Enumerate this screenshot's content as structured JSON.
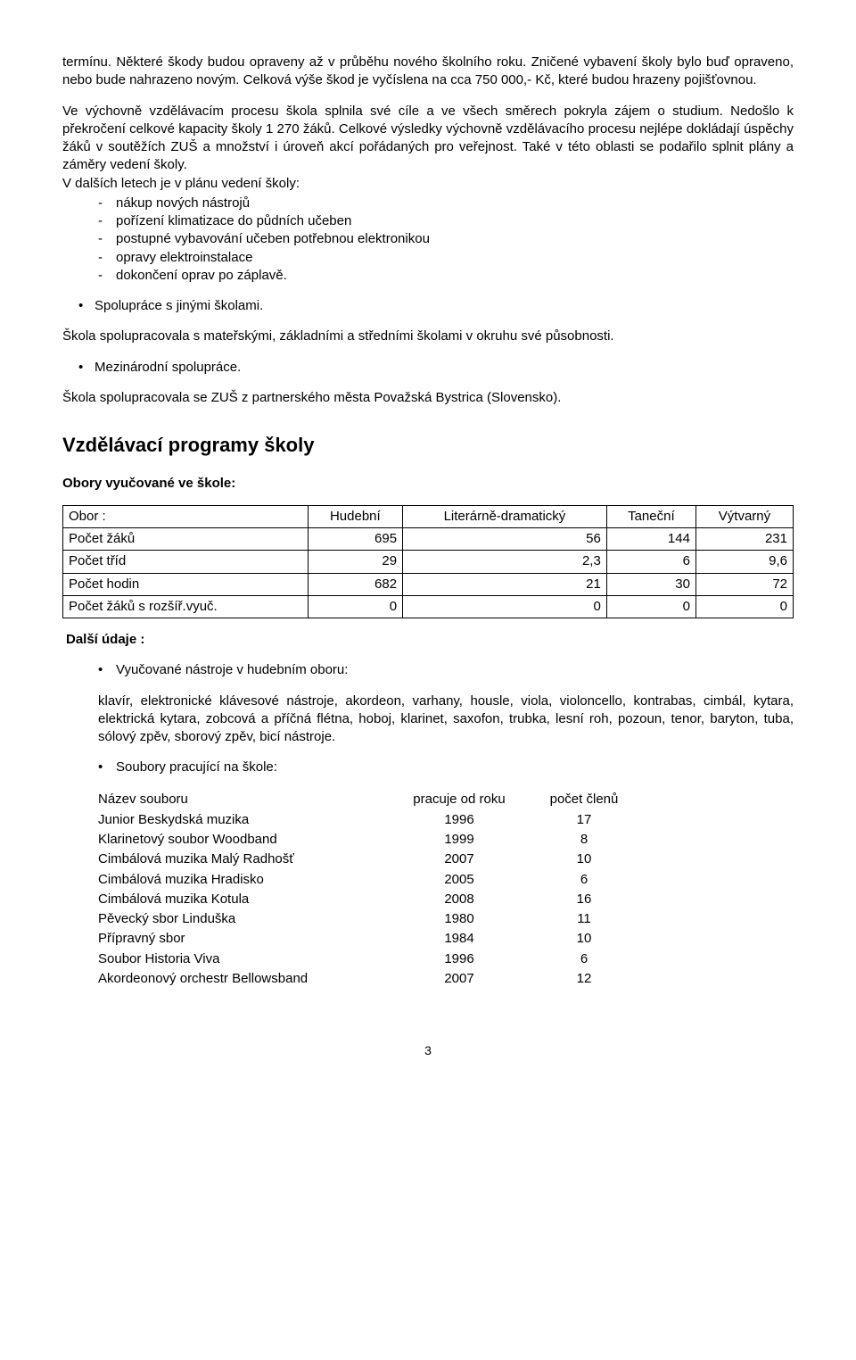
{
  "para1": "termínu. Některé škody budou opraveny až v průběhu nového školního roku. Zničené vybavení školy bylo buď opraveno, nebo bude nahrazeno novým. Celková výše škod je vyčíslena na cca 750 000,- Kč, které budou hrazeny pojišťovnou.",
  "para2_lead": "Ve výchovně vzdělávacím procesu škola splnila své cíle a ve všech směrech pokryla zájem o studium. Nedošlo k překročení celkové kapacity školy 1 270 žáků. Celkové výsledky výchovně vzdělávacího procesu nejlépe dokládají úspěchy žáků v soutěžích ZUŠ a množství i úroveň akcí pořádaných pro veřejnost. Také v této oblasti se podařilo splnit plány a záměry vedení školy.",
  "plan_lead": "V dalších letech je v plánu vedení školy:",
  "plan_items": [
    "nákup  nových nástrojů",
    "pořízení klimatizace do půdních učeben",
    "postupné vybavování učeben potřebnou elektronikou",
    "opravy elektroinstalace",
    "dokončení oprav po záplavě."
  ],
  "bullet_spoluprace": "Spolupráce s jinými školami.",
  "para_spoluprace": "Škola spolupracovala s mateřskými, základními a středními školami v okruhu své působnosti.",
  "bullet_mezinarodni": "Mezinárodní spolupráce.",
  "para_mezinarodni": "Škola spolupracovala se ZUŠ z partnerského města Považská Bystrica (Slovensko).",
  "section_title": "Vzdělávací  programy  školy",
  "obory_heading": "Obory vyučované ve škole:",
  "table_obory": {
    "columns": [
      "Obor :",
      "Hudební",
      "Literárně-dramatický",
      "Taneční",
      "Výtvarný"
    ],
    "rows": [
      [
        "Počet žáků",
        "695",
        "56",
        "144",
        "231"
      ],
      [
        "Počet tříd",
        "29",
        "2,3",
        "6",
        "9,6"
      ],
      [
        "Počet hodin",
        "682",
        "21",
        "30",
        "72"
      ],
      [
        "Počet žáků s rozšíř.vyuč.",
        "0",
        "0",
        "0",
        "0"
      ]
    ]
  },
  "dalsi_udaje_label": "Další údaje :",
  "bullet_nastroje": "Vyučované nástroje v hudebním oboru:",
  "instruments_text": "klavír, elektronické klávesové nástroje, akordeon, varhany, housle, viola, violoncello, kontrabas, cimbál, kytara, elektrická kytara, zobcová a příčná flétna, hoboj, klarinet, saxofon, trubka, lesní roh, pozoun, tenor, baryton, tuba, sólový zpěv, sborový zpěv, bicí nástroje.",
  "bullet_soubory": "Soubory pracující na škole:",
  "soubory_head": [
    "Název souboru",
    "pracuje od roku",
    "počet členů"
  ],
  "soubory_rows": [
    [
      "Junior Beskydská muzika",
      "1996",
      "17"
    ],
    [
      "Klarinetový soubor Woodband",
      "1999",
      "8"
    ],
    [
      "Cimbálová muzika Malý Radhošť",
      "2007",
      "10"
    ],
    [
      "Cimbálová muzika Hradisko",
      "2005",
      "6"
    ],
    [
      "Cimbálová muzika Kotula",
      "2008",
      "16"
    ],
    [
      "Pěvecký sbor Linduška",
      "1980",
      "11"
    ],
    [
      "Přípravný sbor",
      "1984",
      "10"
    ],
    [
      "Soubor Historia Viva",
      "1996",
      "6"
    ],
    [
      "Akordeonový orchestr Bellowsband",
      "2007",
      "12"
    ]
  ],
  "page_number": "3"
}
